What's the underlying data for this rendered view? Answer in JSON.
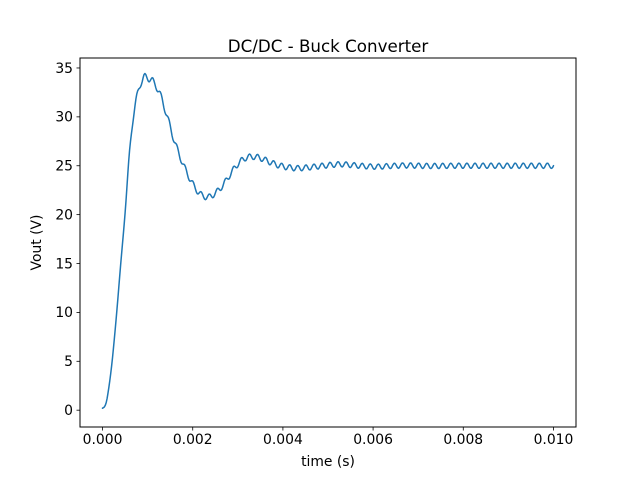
{
  "figure": {
    "background": "#ffffff",
    "plot_background": "#ffffff",
    "spine_color": "#000000"
  },
  "chart_data": {
    "type": "line",
    "title": "DC/DC - Buck Converter",
    "xlabel": "time (s)",
    "ylabel": "Vout (V)",
    "grid": false,
    "legend": null,
    "xlim": [
      -0.0005,
      0.0105
    ],
    "ylim": [
      -1.72,
      36.02
    ],
    "x_ticks": {
      "values": [
        0.0,
        0.002,
        0.004,
        0.006,
        0.008,
        0.01
      ],
      "labels": [
        "0.000",
        "0.002",
        "0.004",
        "0.006",
        "0.008",
        "0.010"
      ]
    },
    "y_ticks": {
      "values": [
        0,
        5,
        10,
        15,
        20,
        25,
        30,
        35
      ],
      "labels": [
        "0",
        "5",
        "10",
        "15",
        "20",
        "25",
        "30",
        "35"
      ]
    },
    "line": {
      "color": "#1f77b4",
      "width": 1.5
    },
    "key_values": {
      "steady_state_V": 25.0,
      "first_peak_V": 34.3,
      "first_peak_time_ms": 0.95,
      "undershoot_min_V": 21.6,
      "undershoot_time_ms": 2.2,
      "second_peak_V": 26.2,
      "second_peak_time_ms": 3.2,
      "ripple_peak_to_peak_V": 0.55
    },
    "series": [
      {
        "name": "Vout",
        "unit": "V",
        "sample_step_ms": 0.02,
        "t_end_ms": 10.0,
        "envelope_points_ms_V": [
          [
            0.0,
            0.2
          ],
          [
            0.05,
            0.4
          ],
          [
            0.1,
            1.2
          ],
          [
            0.2,
            4.5
          ],
          [
            0.3,
            9.3
          ],
          [
            0.4,
            14.8
          ],
          [
            0.5,
            20.2
          ],
          [
            0.6,
            26.5
          ],
          [
            0.7,
            30.5
          ],
          [
            0.8,
            32.8
          ],
          [
            0.9,
            33.9
          ],
          [
            0.97,
            34.05
          ],
          [
            1.05,
            33.9
          ],
          [
            1.15,
            33.4
          ],
          [
            1.25,
            32.6
          ],
          [
            1.39,
            30.7
          ],
          [
            1.61,
            27.3
          ],
          [
            1.84,
            24.6
          ],
          [
            2.06,
            22.7
          ],
          [
            2.2,
            22.0
          ],
          [
            2.35,
            21.8
          ],
          [
            2.5,
            22.2
          ],
          [
            2.65,
            22.9
          ],
          [
            2.8,
            23.9
          ],
          [
            2.95,
            24.9
          ],
          [
            3.1,
            25.6
          ],
          [
            3.25,
            25.9
          ],
          [
            3.4,
            25.9
          ],
          [
            3.55,
            25.7
          ],
          [
            3.7,
            25.4
          ],
          [
            3.9,
            25.05
          ],
          [
            4.1,
            24.85
          ],
          [
            4.3,
            24.75
          ],
          [
            4.5,
            24.8
          ],
          [
            4.7,
            24.9
          ],
          [
            4.9,
            25.0
          ],
          [
            5.1,
            25.1
          ],
          [
            5.3,
            25.15
          ],
          [
            5.5,
            25.08
          ],
          [
            5.7,
            25.0
          ],
          [
            5.9,
            24.93
          ],
          [
            6.1,
            24.9
          ],
          [
            6.3,
            24.95
          ],
          [
            6.5,
            25.0
          ],
          [
            6.7,
            25.03
          ],
          [
            6.9,
            25.02
          ],
          [
            7.2,
            24.98
          ],
          [
            7.5,
            24.98
          ],
          [
            7.8,
            25.0
          ],
          [
            8.2,
            25.0
          ],
          [
            8.6,
            25.0
          ],
          [
            9.0,
            25.0
          ],
          [
            9.5,
            25.0
          ],
          [
            10.0,
            25.0
          ]
        ],
        "ripple": {
          "frequency_hz": 5600,
          "amplitude_profile_ms_V": [
            [
              0.0,
              0.0
            ],
            [
              0.5,
              0.02
            ],
            [
              0.75,
              0.3
            ],
            [
              0.95,
              0.4
            ],
            [
              1.4,
              0.35
            ],
            [
              2.0,
              0.3
            ],
            [
              3.0,
              0.3
            ],
            [
              6.0,
              0.27
            ],
            [
              10.0,
              0.27
            ]
          ]
        }
      }
    ]
  }
}
